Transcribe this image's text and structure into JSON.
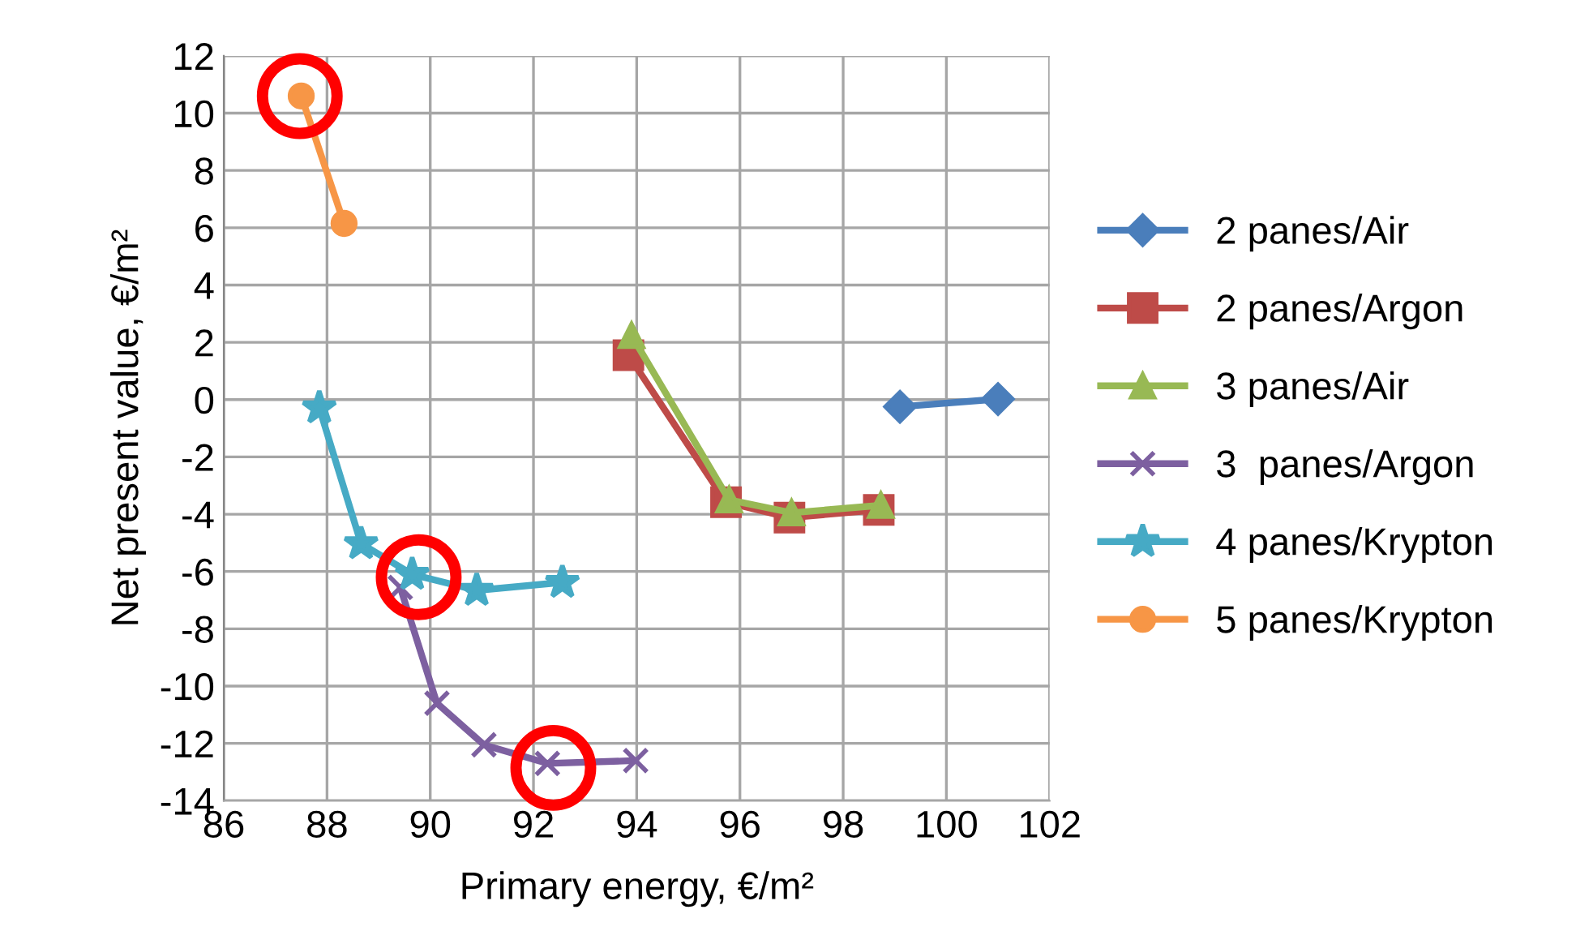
{
  "chart_data": {
    "type": "line",
    "xlabel": "Primary energy, €/m²",
    "ylabel": "Net present value, €/m²",
    "xlim": [
      86,
      102
    ],
    "xticks": [
      86,
      88,
      90,
      92,
      94,
      96,
      98,
      100,
      102
    ],
    "ylim": [
      -14,
      12
    ],
    "yticks": [
      -14,
      -12,
      -10,
      -8,
      -6,
      -4,
      -2,
      0,
      2,
      4,
      6,
      8,
      10,
      12
    ],
    "grid": true,
    "legend": "right",
    "line_style": "solid",
    "series": [
      {
        "name": "2 panes/Air",
        "color": "#4a7ebb",
        "marker": "diamond",
        "x": [
          99.1,
          101.0
        ],
        "values": [
          -0.25,
          0.02
        ]
      },
      {
        "name": "2 panes/Argon",
        "color": "#be4b48",
        "marker": "square",
        "x": [
          93.84,
          95.73,
          96.96,
          98.69
        ],
        "values": [
          1.55,
          -3.58,
          -4.12,
          -3.85
        ]
      },
      {
        "name": "3 panes/Air",
        "color": "#98b954",
        "marker": "triangle",
        "x": [
          93.9,
          95.79,
          97.0,
          98.73
        ],
        "values": [
          2.24,
          -3.5,
          -3.95,
          -3.69
        ]
      },
      {
        "name": "3  panes/Argon",
        "color": "#7d60a0",
        "marker": "cross",
        "x": [
          89.42,
          90.13,
          91.04,
          92.27,
          93.98
        ],
        "values": [
          -6.56,
          -10.6,
          -12.05,
          -12.7,
          -12.6
        ]
      },
      {
        "name": "4 panes/Krypton",
        "color": "#46aac5",
        "marker": "star",
        "x": [
          87.85,
          88.66,
          89.65,
          90.9,
          92.56
        ],
        "values": [
          -0.29,
          -5.03,
          -6.1,
          -6.66,
          -6.38
        ]
      },
      {
        "name": "5 panes/Krypton",
        "color": "#f79646",
        "marker": "circle",
        "x": [
          87.5,
          88.33
        ],
        "values": [
          10.6,
          6.15
        ]
      }
    ]
  }
}
